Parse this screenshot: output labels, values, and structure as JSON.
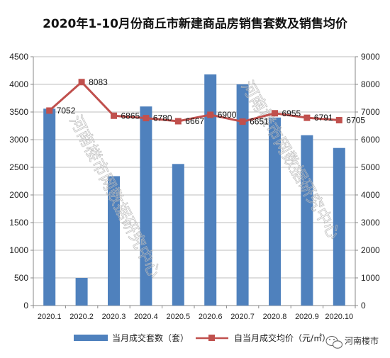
{
  "chart_data": {
    "type": "bar+line",
    "title": "2020年1-10月份商丘市新建商品房销售套数及销售均价",
    "categories": [
      "2020.1",
      "2020.2",
      "2020.3",
      "2020.4",
      "2020.5",
      "2020.6",
      "2020.7",
      "2020.8",
      "2020.9",
      "2020.10"
    ],
    "series": [
      {
        "name": "当月成交套数（套）",
        "type": "bar",
        "axis": "left",
        "color": "#4f81bd",
        "values": [
          3560,
          500,
          2340,
          3600,
          2560,
          4180,
          4000,
          3400,
          3080,
          2850
        ]
      },
      {
        "name": "自当月成交均价（元/㎡）",
        "type": "line",
        "axis": "right",
        "color": "#c0504d",
        "values": [
          7052,
          8083,
          6865,
          6780,
          6667,
          6900,
          6651,
          6955,
          6791,
          6705
        ],
        "labels": [
          "7052",
          "8083",
          "6865",
          "6780",
          "6667",
          "6900",
          "6651",
          "6955",
          "6791",
          "6705"
        ]
      }
    ],
    "y_left": {
      "min": 0,
      "max": 4500,
      "step": 500,
      "ticks": [
        "0",
        "500",
        "1000",
        "1500",
        "2000",
        "2500",
        "3000",
        "3500",
        "4000",
        "4500"
      ]
    },
    "y_right": {
      "min": 0,
      "max": 9000,
      "step": 1000,
      "ticks": [
        "0",
        "1000",
        "2000",
        "3000",
        "4000",
        "5000",
        "6000",
        "7000",
        "8000",
        "9000"
      ]
    },
    "grid": true,
    "legend_position": "bottom"
  },
  "watermark": {
    "text1": "河南楼市网数据研究中心",
    "text2": "河南楼市网数据研究中心"
  },
  "brand": {
    "text": "河南楼市",
    "icon": "wechat-icon"
  }
}
